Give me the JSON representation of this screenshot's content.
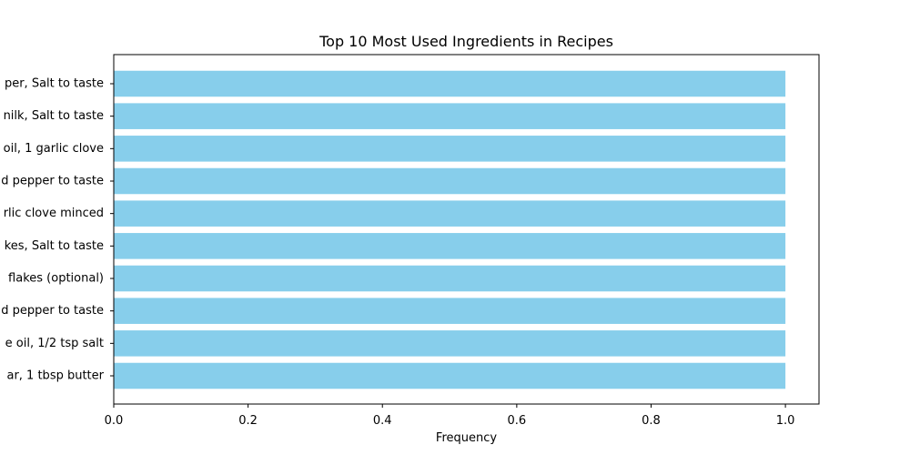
{
  "chart_data": {
    "type": "bar",
    "orientation": "horizontal",
    "title": "Top 10 Most Used Ingredients in Recipes",
    "xlabel": "Frequency",
    "ylabel": "",
    "xlim": [
      0,
      1.05
    ],
    "xticks": [
      0.0,
      0.2,
      0.4,
      0.6,
      0.8,
      1.0
    ],
    "xtick_labels": [
      "0.0",
      "0.2",
      "0.4",
      "0.6",
      "0.8",
      "1.0"
    ],
    "categories": [
      "ar, 1 tbsp butter",
      "e oil, 1/2 tsp salt",
      "d pepper to taste",
      "flakes (optional)",
      "kes, Salt to taste",
      "rlic clove minced",
      "d pepper to taste",
      "oil, 1 garlic clove",
      "nilk, Salt to taste",
      "per, Salt to taste"
    ],
    "values": [
      1,
      1,
      1,
      1,
      1,
      1,
      1,
      1,
      1,
      1
    ],
    "bar_color": "#87CEEB",
    "grid": false,
    "legend": "none"
  }
}
